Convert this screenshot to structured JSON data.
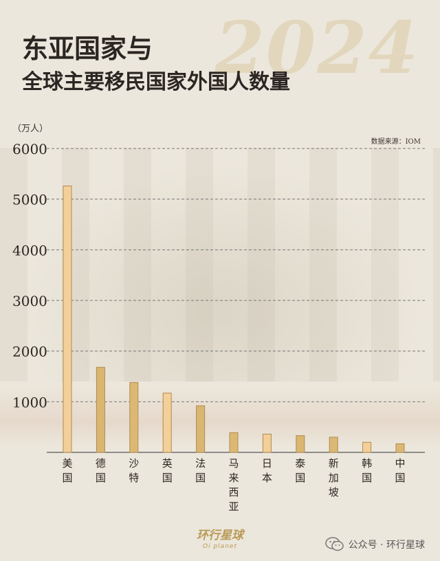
{
  "header": {
    "title_line1": "东亚国家与",
    "title_line2": "全球主要移民国家外国人数量",
    "year_watermark": "2024"
  },
  "chart_data": {
    "type": "bar",
    "unit_label": "（万人）",
    "source_label": "数据来源：IOM",
    "categories": [
      "美国",
      "德国",
      "沙特",
      "英国",
      "法国",
      "马来西亚",
      "日本",
      "泰国",
      "新加坡",
      "韩国",
      "中国"
    ],
    "values": [
      5260,
      1680,
      1380,
      1170,
      920,
      390,
      360,
      330,
      300,
      200,
      170
    ],
    "ylim": [
      0,
      6000
    ],
    "yticks": [
      1000,
      2000,
      3000,
      4000,
      5000,
      6000
    ],
    "grid": true,
    "bar_colors": [
      "#f3cf9a",
      "#d9b672",
      "#dcb875",
      "#f3cf9a",
      "#d9b672",
      "#dcb875",
      "#f3cf9a",
      "#d9b672",
      "#dcb875",
      "#f3cf9a",
      "#dcb875"
    ],
    "bar_stroke": "#b08a4e",
    "grid_color": "#777777"
  },
  "footer": {
    "logo_text": "环行星球",
    "logo_sub": "Oi planet",
    "wechat_text": "公众号 · 环行星球"
  }
}
